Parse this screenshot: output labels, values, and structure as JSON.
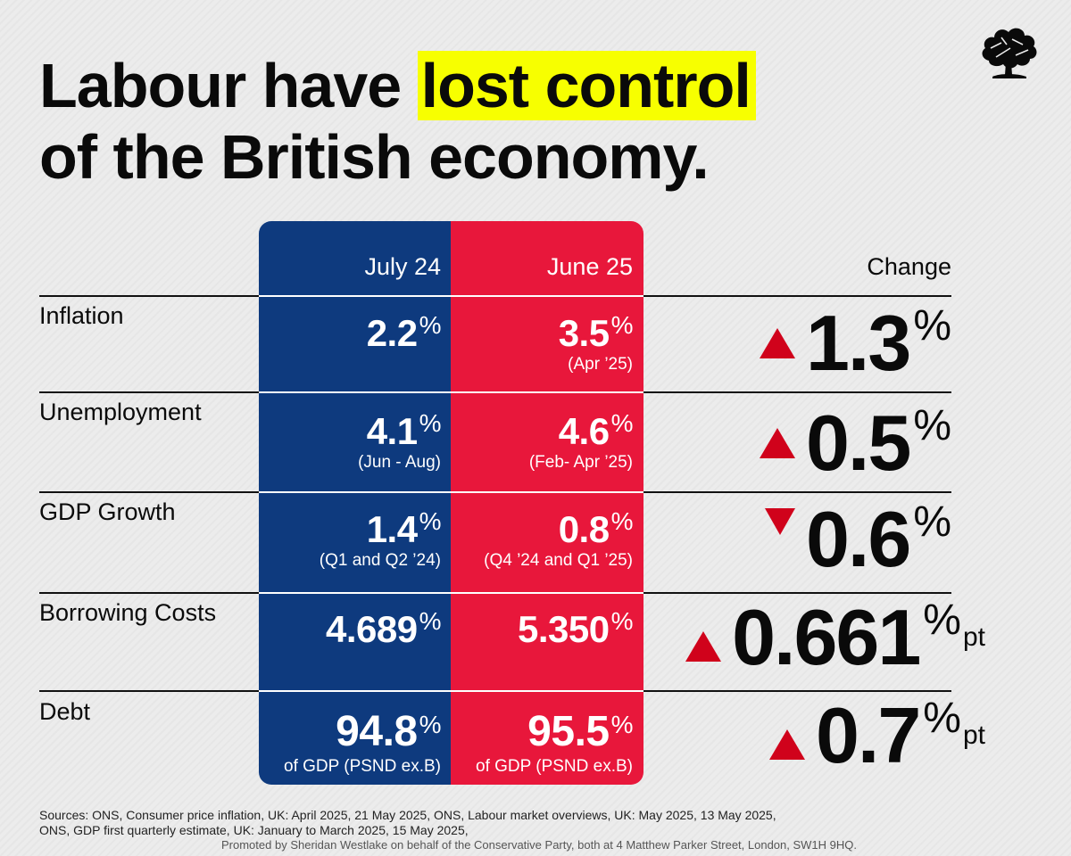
{
  "title": {
    "line1_prefix": "Labour have",
    "line1_highlight": "lost control",
    "line2": "of the British economy."
  },
  "colors": {
    "highlight": "#f7ff00",
    "blue_panel": "#0e3a7e",
    "red_panel": "#e8173b",
    "arrow": "#d0021b"
  },
  "logo": {
    "icon": "conservative-tree-logo-icon"
  },
  "columns": {
    "july": "July 24",
    "june": "June 25",
    "change": "Change"
  },
  "rows": [
    {
      "label": "Inflation",
      "july": {
        "value": "2.2",
        "unit": "%",
        "note": ""
      },
      "june": {
        "value": "3.5",
        "unit": "%",
        "note": "(Apr ’25)"
      },
      "change": {
        "direction": "up",
        "value": "1.3",
        "unit": "%",
        "suffix": ""
      }
    },
    {
      "label": "Unemployment",
      "july": {
        "value": "4.1",
        "unit": "%",
        "note": "(Jun - Aug)"
      },
      "june": {
        "value": "4.6",
        "unit": "%",
        "note": "(Feb- Apr ’25)"
      },
      "change": {
        "direction": "up",
        "value": "0.5",
        "unit": "%",
        "suffix": ""
      }
    },
    {
      "label": "GDP Growth",
      "july": {
        "value": "1.4",
        "unit": "%",
        "note": "(Q1 and Q2 ’24)"
      },
      "june": {
        "value": "0.8",
        "unit": "%",
        "note": "(Q4 ’24 and Q1 ’25)"
      },
      "change": {
        "direction": "down",
        "value": "0.6",
        "unit": "%",
        "suffix": ""
      }
    },
    {
      "label": "Borrowing Costs",
      "july": {
        "value": "4.689",
        "unit": "%",
        "note": ""
      },
      "june": {
        "value": "5.350",
        "unit": "%",
        "note": ""
      },
      "change": {
        "direction": "up",
        "value": "0.661",
        "unit": "%",
        "suffix": "pt"
      }
    },
    {
      "label": "Debt",
      "july": {
        "value": "94.8",
        "unit": "%",
        "note": "of GDP (PSND ex.B)"
      },
      "june": {
        "value": "95.5",
        "unit": "%",
        "note": "of GDP (PSND ex.B)"
      },
      "change": {
        "direction": "up",
        "value": "0.7",
        "unit": "%",
        "suffix": "pt"
      }
    }
  ],
  "sources": {
    "line1": "Sources: ONS, Consumer price inflation, UK: April 2025, 21 May 2025, ONS, Labour market overviews, UK: May 2025, 13 May 2025,",
    "line2": "ONS, GDP first quarterly estimate, UK: January to March 2025, 15 May 2025,"
  },
  "promoted": "Promoted by Sheridan Westlake on behalf of the Conservative Party, both at 4 Matthew Parker Street, London, SW1H 9HQ."
}
